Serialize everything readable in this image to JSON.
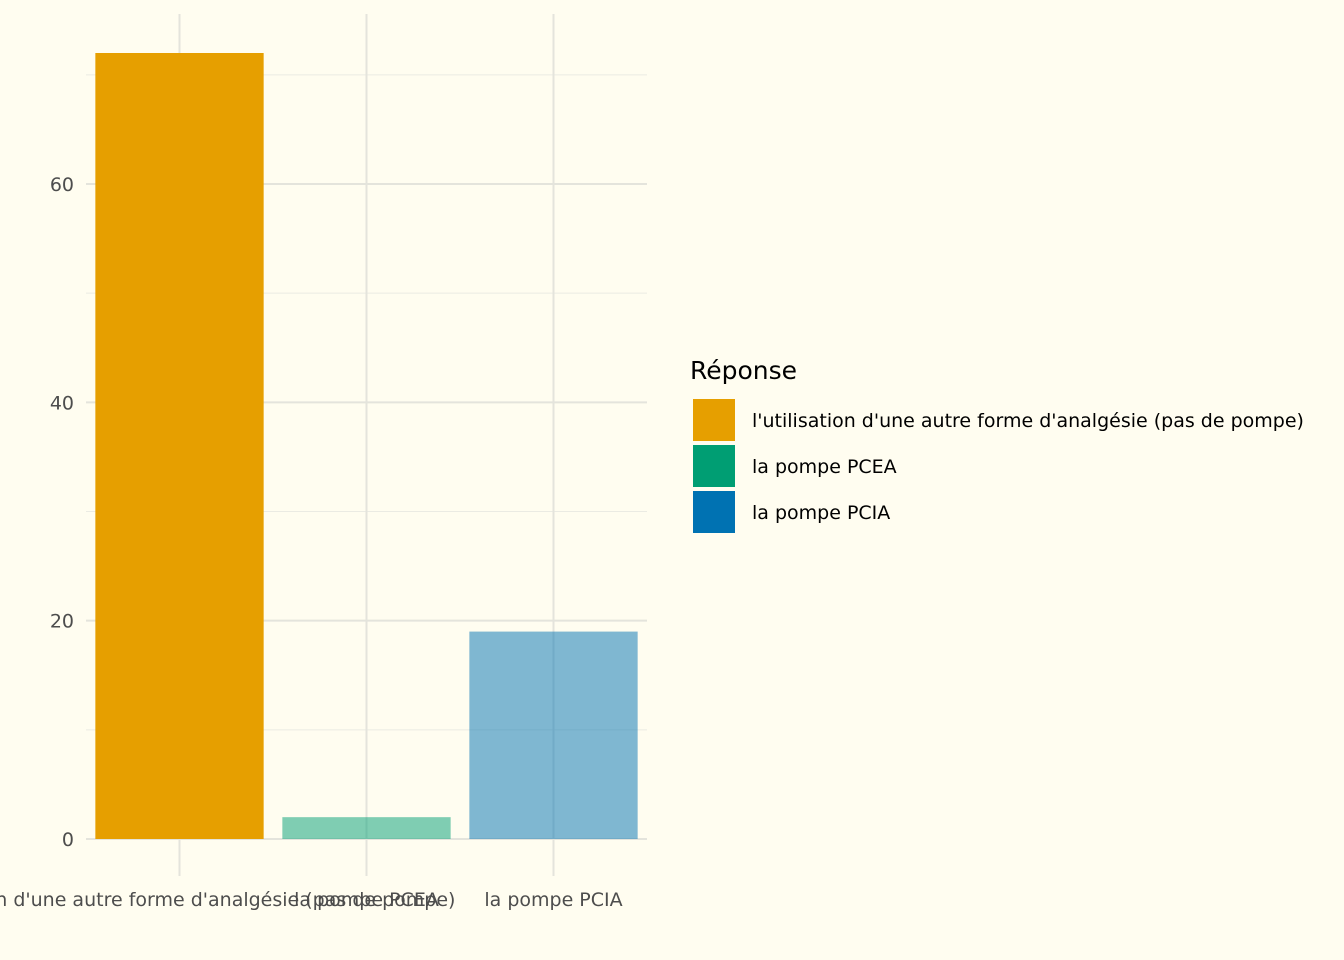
{
  "chart_data": {
    "type": "bar",
    "categories": [
      "l'utilisation d'une autre forme d'analgésie (pas de pompe)",
      "la pompe PCEA",
      "la pompe PCIA"
    ],
    "values": [
      72,
      2,
      19
    ],
    "bar_colors": [
      "#E69F00",
      "#009E73",
      "#0072B2"
    ],
    "bar_opacity": [
      1.0,
      0.5,
      0.5
    ],
    "ylim": [
      0,
      75.6
    ],
    "y_ticks": [
      0,
      20,
      40,
      60
    ],
    "y_minor_ticks": [
      10,
      30,
      50,
      70
    ],
    "grid": true,
    "xlabel": "",
    "ylabel": "",
    "legend": {
      "title": "Réponse",
      "position": "right",
      "entries": [
        {
          "label": "l'utilisation d'une autre forme d'analgésie (pas de pompe)",
          "color": "#E69F00"
        },
        {
          "label": "la pompe PCEA",
          "color": "#009E73"
        },
        {
          "label": "la pompe PCIA",
          "color": "#0072B2"
        }
      ]
    }
  }
}
